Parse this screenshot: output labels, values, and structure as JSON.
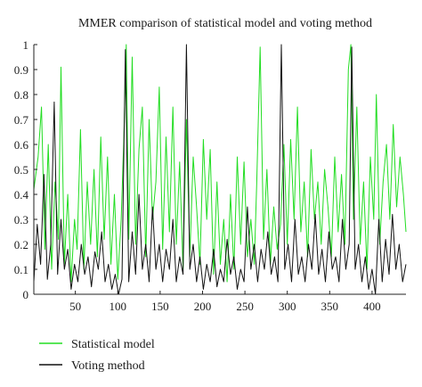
{
  "chart_data": {
    "type": "line",
    "title": "MMER comparison of statistical model and voting method",
    "xlabel": "",
    "ylabel": "",
    "xlim": [
      1,
      440
    ],
    "ylim": [
      0,
      1
    ],
    "x_ticks": [
      "50",
      "100",
      "150",
      "200",
      "250",
      "300",
      "350",
      "400"
    ],
    "x_tick_values": [
      50,
      100,
      150,
      200,
      250,
      300,
      350,
      400
    ],
    "y_ticks": [
      "0",
      "0.1",
      "0.2",
      "0.3",
      "0.4",
      "0.5",
      "0.6",
      "0.7",
      "0.8",
      "0.9",
      "1"
    ],
    "y_tick_values": [
      0,
      0.1,
      0.2,
      0.3,
      0.4,
      0.5,
      0.6,
      0.7,
      0.8,
      0.9,
      1
    ],
    "grid": false,
    "legend_position": "bottom-left",
    "series": [
      {
        "name": "Statistical model",
        "color": "#22dd22",
        "points": [
          [
            1,
            0.42
          ],
          [
            6,
            0.55
          ],
          [
            10,
            0.75
          ],
          [
            14,
            0.18
          ],
          [
            18,
            0.6
          ],
          [
            22,
            0.1
          ],
          [
            26,
            0.45
          ],
          [
            30,
            0.22
          ],
          [
            33,
            0.91
          ],
          [
            37,
            0.12
          ],
          [
            41,
            0.4
          ],
          [
            45,
            0.05
          ],
          [
            49,
            0.3
          ],
          [
            52,
            0.18
          ],
          [
            56,
            0.66
          ],
          [
            60,
            0.1
          ],
          [
            64,
            0.45
          ],
          [
            68,
            0.2
          ],
          [
            72,
            0.5
          ],
          [
            76,
            0.15
          ],
          [
            80,
            0.63
          ],
          [
            84,
            0.22
          ],
          [
            88,
            0.55
          ],
          [
            92,
            0.12
          ],
          [
            96,
            0.4
          ],
          [
            100,
            0.06
          ],
          [
            104,
            0.3
          ],
          [
            107,
            0.6
          ],
          [
            110,
            1.0
          ],
          [
            113,
            0.22
          ],
          [
            117,
            0.95
          ],
          [
            121,
            0.2
          ],
          [
            125,
            0.58
          ],
          [
            129,
            0.75
          ],
          [
            133,
            0.15
          ],
          [
            137,
            0.7
          ],
          [
            141,
            0.3
          ],
          [
            145,
            0.45
          ],
          [
            149,
            0.83
          ],
          [
            153,
            0.18
          ],
          [
            157,
            0.63
          ],
          [
            161,
            0.25
          ],
          [
            165,
            0.75
          ],
          [
            169,
            0.2
          ],
          [
            173,
            0.53
          ],
          [
            177,
            0.1
          ],
          [
            181,
            0.7
          ],
          [
            185,
            0.15
          ],
          [
            189,
            0.55
          ],
          [
            193,
            0.35
          ],
          [
            197,
            0.12
          ],
          [
            201,
            0.62
          ],
          [
            205,
            0.3
          ],
          [
            209,
            0.58
          ],
          [
            213,
            0.08
          ],
          [
            217,
            0.45
          ],
          [
            221,
            0.12
          ],
          [
            225,
            0.3
          ],
          [
            229,
            0.05
          ],
          [
            233,
            0.4
          ],
          [
            237,
            0.1
          ],
          [
            241,
            0.55
          ],
          [
            245,
            0.2
          ],
          [
            249,
            0.53
          ],
          [
            253,
            0.15
          ],
          [
            257,
            0.3
          ],
          [
            261,
            0.12
          ],
          [
            264,
            0.45
          ],
          [
            268,
            0.99
          ],
          [
            272,
            0.22
          ],
          [
            276,
            0.5
          ],
          [
            280,
            0.12
          ],
          [
            284,
            0.35
          ],
          [
            288,
            0.18
          ],
          [
            292,
            0.28
          ],
          [
            296,
            0.6
          ],
          [
            300,
            0.2
          ],
          [
            304,
            0.62
          ],
          [
            308,
            0.3
          ],
          [
            312,
            0.75
          ],
          [
            316,
            0.25
          ],
          [
            320,
            0.45
          ],
          [
            324,
            0.15
          ],
          [
            328,
            0.58
          ],
          [
            332,
            0.3
          ],
          [
            336,
            0.45
          ],
          [
            340,
            0.2
          ],
          [
            344,
            0.5
          ],
          [
            348,
            0.35
          ],
          [
            352,
            0.15
          ],
          [
            356,
            0.55
          ],
          [
            360,
            0.25
          ],
          [
            364,
            0.48
          ],
          [
            368,
            0.2
          ],
          [
            372,
            0.9
          ],
          [
            375,
            1.0
          ],
          [
            378,
            0.3
          ],
          [
            382,
            0.75
          ],
          [
            386,
            0.2
          ],
          [
            390,
            0.45
          ],
          [
            394,
            0.1
          ],
          [
            398,
            0.55
          ],
          [
            402,
            0.3
          ],
          [
            405,
            0.8
          ],
          [
            409,
            0.2
          ],
          [
            413,
            0.45
          ],
          [
            417,
            0.6
          ],
          [
            421,
            0.3
          ],
          [
            425,
            0.68
          ],
          [
            429,
            0.35
          ],
          [
            433,
            0.55
          ],
          [
            437,
            0.4
          ],
          [
            440,
            0.25
          ]
        ]
      },
      {
        "name": "Voting method",
        "color": "#111111",
        "points": [
          [
            1,
            0.05
          ],
          [
            5,
            0.28
          ],
          [
            9,
            0.12
          ],
          [
            13,
            0.48
          ],
          [
            17,
            0.06
          ],
          [
            21,
            0.2
          ],
          [
            25,
            0.77
          ],
          [
            29,
            0.08
          ],
          [
            33,
            0.3
          ],
          [
            37,
            0.1
          ],
          [
            41,
            0.18
          ],
          [
            45,
            0.02
          ],
          [
            49,
            0.12
          ],
          [
            53,
            0.05
          ],
          [
            57,
            0.2
          ],
          [
            61,
            0.08
          ],
          [
            65,
            0.15
          ],
          [
            69,
            0.03
          ],
          [
            73,
            0.17
          ],
          [
            77,
            0.1
          ],
          [
            81,
            0.25
          ],
          [
            85,
            0.05
          ],
          [
            89,
            0.12
          ],
          [
            93,
            0.02
          ],
          [
            97,
            0.08
          ],
          [
            101,
            0.0
          ],
          [
            105,
            0.06
          ],
          [
            109,
            0.98
          ],
          [
            113,
            0.05
          ],
          [
            117,
            0.25
          ],
          [
            121,
            0.08
          ],
          [
            125,
            0.4
          ],
          [
            129,
            0.1
          ],
          [
            133,
            0.2
          ],
          [
            137,
            0.05
          ],
          [
            141,
            0.35
          ],
          [
            145,
            0.1
          ],
          [
            149,
            0.2
          ],
          [
            153,
            0.05
          ],
          [
            157,
            0.18
          ],
          [
            161,
            0.1
          ],
          [
            165,
            0.3
          ],
          [
            169,
            0.05
          ],
          [
            173,
            0.15
          ],
          [
            177,
            0.08
          ],
          [
            181,
            1.0
          ],
          [
            185,
            0.1
          ],
          [
            189,
            0.2
          ],
          [
            193,
            0.05
          ],
          [
            197,
            0.15
          ],
          [
            201,
            0.02
          ],
          [
            205,
            0.12
          ],
          [
            209,
            0.05
          ],
          [
            213,
            0.18
          ],
          [
            217,
            0.03
          ],
          [
            221,
            0.1
          ],
          [
            225,
            0.05
          ],
          [
            229,
            0.22
          ],
          [
            233,
            0.08
          ],
          [
            237,
            0.15
          ],
          [
            241,
            0.02
          ],
          [
            245,
            0.1
          ],
          [
            249,
            0.05
          ],
          [
            253,
            0.35
          ],
          [
            257,
            0.1
          ],
          [
            261,
            0.2
          ],
          [
            265,
            0.05
          ],
          [
            269,
            0.18
          ],
          [
            273,
            0.1
          ],
          [
            277,
            0.25
          ],
          [
            281,
            0.08
          ],
          [
            285,
            0.15
          ],
          [
            289,
            0.05
          ],
          [
            293,
            1.0
          ],
          [
            297,
            0.1
          ],
          [
            301,
            0.2
          ],
          [
            305,
            0.05
          ],
          [
            309,
            0.3
          ],
          [
            313,
            0.08
          ],
          [
            317,
            0.15
          ],
          [
            321,
            0.05
          ],
          [
            325,
            0.2
          ],
          [
            329,
            0.1
          ],
          [
            333,
            0.32
          ],
          [
            337,
            0.08
          ],
          [
            341,
            0.18
          ],
          [
            345,
            0.05
          ],
          [
            349,
            0.25
          ],
          [
            353,
            0.1
          ],
          [
            357,
            0.15
          ],
          [
            361,
            0.05
          ],
          [
            365,
            0.3
          ],
          [
            369,
            0.1
          ],
          [
            373,
            0.2
          ],
          [
            376,
            0.99
          ],
          [
            380,
            0.1
          ],
          [
            384,
            0.2
          ],
          [
            388,
            0.05
          ],
          [
            392,
            0.15
          ],
          [
            396,
            0.02
          ],
          [
            400,
            0.1
          ],
          [
            404,
            0.0
          ],
          [
            408,
            0.3
          ],
          [
            412,
            0.05
          ],
          [
            416,
            0.22
          ],
          [
            420,
            0.08
          ],
          [
            424,
            0.32
          ],
          [
            428,
            0.1
          ],
          [
            432,
            0.2
          ],
          [
            436,
            0.05
          ],
          [
            440,
            0.12
          ]
        ]
      }
    ]
  }
}
